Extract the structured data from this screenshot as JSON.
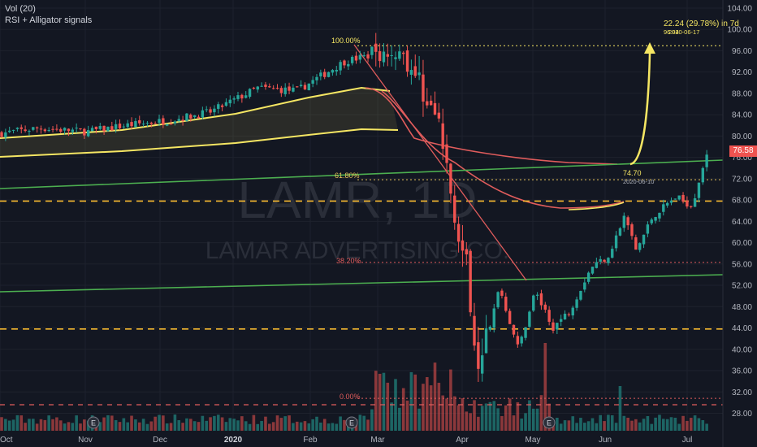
{
  "legend": {
    "vol": "Vol (20)",
    "study": "RSI + Alligator signals"
  },
  "watermark": {
    "symbol": "LAMR, 1D",
    "name": "LAMAR ADVERTISING CO."
  },
  "fib": {
    "level_100": "100.00%",
    "level_618": "61.80%",
    "level_382": "38.20%",
    "level_0": "0.00%"
  },
  "projection": {
    "change": "22.24 (29.78%) in 7d",
    "target_price": "96.94",
    "target_date": "2020-06-17",
    "start_price": "74.70",
    "start_date": "2020-06-10"
  },
  "last_price": "76.58",
  "colors": {
    "background": "#131722",
    "up": "#26a69a",
    "down": "#ef5350",
    "ma_yellow": "#f5e663",
    "ma_red": "#e05c5c",
    "trend_green": "#4caf50",
    "dashed_orange": "#f5b82e",
    "fib_red": "#e05c5c",
    "fib_yellow": "#f5e663"
  },
  "chart_data": {
    "type": "candlestick",
    "x_labels": [
      "Oct",
      "Nov",
      "Dec",
      "2020",
      "Feb",
      "Mar",
      "Apr",
      "May",
      "Jun",
      "Jul"
    ],
    "y_ticks": [
      28,
      32,
      36,
      40,
      44,
      48,
      52,
      56,
      60,
      64,
      68,
      72,
      76,
      80,
      84,
      88,
      92,
      96,
      100,
      104
    ],
    "ylim": [
      26,
      105
    ],
    "last_price": 76.58,
    "horizontal_levels": [
      {
        "name": "fib-100",
        "value": 96.94
      },
      {
        "name": "fib-618",
        "value": 71.8
      },
      {
        "name": "fib-382",
        "value": 56.3
      },
      {
        "name": "fib-0",
        "value": 30.8
      },
      {
        "name": "support-dashed",
        "value": 67.8
      },
      {
        "name": "support-dashed-low",
        "value": 43.8
      },
      {
        "name": "volume-avg-dashed",
        "value": 29.2
      }
    ],
    "projection": {
      "from_value": 74.7,
      "to_value": 96.94,
      "change": 22.24,
      "change_pct": 29.78,
      "days": 7
    },
    "close_path": [
      [
        "2019-10-01",
        80.5
      ],
      [
        "2019-10-15",
        81.5
      ],
      [
        "2019-11-01",
        80.8
      ],
      [
        "2019-11-15",
        82.0
      ],
      [
        "2019-12-01",
        83.0
      ],
      [
        "2019-12-15",
        84.5
      ],
      [
        "2020-01-01",
        89.0
      ],
      [
        "2020-01-15",
        88.5
      ],
      [
        "2020-02-01",
        94.0
      ],
      [
        "2020-02-21",
        96.5
      ],
      [
        "2020-03-02",
        86.5
      ],
      [
        "2020-03-06",
        81.0
      ],
      [
        "2020-03-10",
        69.0
      ],
      [
        "2020-03-12",
        64.0
      ],
      [
        "2020-03-16",
        54.0
      ],
      [
        "2020-03-19",
        38.0
      ],
      [
        "2020-03-24",
        44.0
      ],
      [
        "2020-03-27",
        52.0
      ],
      [
        "2020-04-03",
        40.0
      ],
      [
        "2020-04-09",
        51.0
      ],
      [
        "2020-04-15",
        44.0
      ],
      [
        "2020-04-21",
        47.0
      ],
      [
        "2020-04-29",
        55.5
      ],
      [
        "2020-05-05",
        57.5
      ],
      [
        "2020-05-11",
        65.0
      ],
      [
        "2020-05-15",
        58.5
      ],
      [
        "2020-05-21",
        65.0
      ],
      [
        "2020-05-29",
        68.5
      ],
      [
        "2020-06-04",
        67.0
      ],
      [
        "2020-06-08",
        74.7
      ],
      [
        "2020-06-10",
        76.58
      ]
    ]
  }
}
